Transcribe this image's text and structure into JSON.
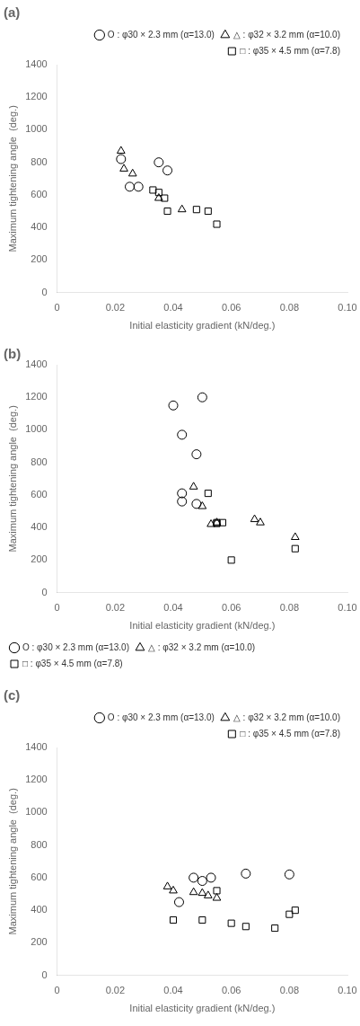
{
  "chart_data": [
    {
      "type": "scatter",
      "title": "(a)",
      "x_label": "Initial elasticity gradient (kN/deg.)",
      "y_label": "Maximum tightening angle  (deg.)",
      "xlim": [
        0,
        0.1
      ],
      "ylim": [
        0,
        1400
      ],
      "xticks": [
        0,
        0.02,
        0.04,
        0.06,
        0.08,
        {
          "value": 0.1,
          "label": "0.10"
        }
      ],
      "yticks": [
        0,
        200,
        400,
        600,
        800,
        1000,
        1200,
        1400
      ],
      "grid": false,
      "legend": "upper right",
      "series": [
        {
          "name": "O : φ30 × 2.3 mm (α=13.0)",
          "marker": "circle",
          "color": "black",
          "x": [
            0.022,
            0.025,
            0.028,
            0.035,
            0.038
          ],
          "values": [
            820,
            650,
            650,
            800,
            750
          ]
        },
        {
          "name": "△ : φ32 × 3.2 mm (α=10.0)",
          "marker": "triangle",
          "color": "black",
          "x": [
            0.022,
            0.023,
            0.026,
            0.035,
            0.043
          ],
          "values": [
            870,
            760,
            730,
            580,
            510
          ]
        },
        {
          "name": "□ : φ35 × 4.5 mm (α=7.8)",
          "marker": "square",
          "color": "black",
          "x": [
            0.033,
            0.035,
            0.037,
            0.038,
            0.048,
            0.052,
            0.055
          ],
          "values": [
            630,
            615,
            580,
            500,
            510,
            500,
            420
          ]
        }
      ]
    },
    {
      "type": "scatter",
      "title": "(b)",
      "x_label": "Initial elasticity gradient (kN/deg.)",
      "y_label": "Maximum tightening angle  (deg.)",
      "xlim": [
        0,
        0.1
      ],
      "ylim": [
        0,
        1400
      ],
      "xticks": [
        0,
        0.02,
        0.04,
        0.06,
        0.08,
        {
          "value": 0.1,
          "label": "0.10"
        }
      ],
      "yticks": [
        0,
        200,
        400,
        600,
        800,
        1000,
        1200,
        1400
      ],
      "grid": false,
      "legend": "lower left",
      "series": [
        {
          "name": "O : φ30 × 2.3 mm (α=13.0)",
          "marker": "circle",
          "color": "black",
          "x": [
            0.04,
            0.05,
            0.043,
            0.048,
            0.043,
            0.043,
            0.048
          ],
          "values": [
            1150,
            1200,
            970,
            850,
            610,
            560,
            545
          ]
        },
        {
          "name": "△ : φ32 × 3.2 mm (α=10.0)",
          "marker": "triangle",
          "color": "black",
          "x": [
            0.047,
            0.05,
            0.053,
            0.055,
            0.068,
            0.07,
            0.082
          ],
          "values": [
            650,
            530,
            420,
            430,
            450,
            430,
            340
          ]
        },
        {
          "name": "□ : φ35 × 4.5 mm (α=7.8)",
          "marker": "square",
          "color": "black",
          "x": [
            0.052,
            0.055,
            0.055,
            0.057,
            0.06,
            0.082
          ],
          "values": [
            610,
            425,
            430,
            430,
            200,
            270
          ]
        }
      ]
    },
    {
      "type": "scatter",
      "title": "(c)",
      "x_label": "Initial elasticity gradient (kN/deg.)",
      "y_label": "Maximum tightening angle  (deg.)",
      "xlim": [
        0,
        0.1
      ],
      "ylim": [
        0,
        1400
      ],
      "xticks": [
        0,
        0.02,
        0.04,
        0.06,
        0.08,
        {
          "value": 0.1,
          "label": "0.10"
        }
      ],
      "yticks": [
        0,
        200,
        400,
        600,
        800,
        1000,
        1200,
        1400
      ],
      "grid": false,
      "legend": "upper right",
      "series": [
        {
          "name": "O : φ30 × 2.3 mm (α=13.0)",
          "marker": "circle",
          "color": "black",
          "x": [
            0.042,
            0.047,
            0.05,
            0.053,
            0.065,
            0.08
          ],
          "values": [
            450,
            600,
            580,
            600,
            625,
            620
          ]
        },
        {
          "name": "△ : φ32 × 3.2 mm (α=10.0)",
          "marker": "triangle",
          "color": "black",
          "x": [
            0.038,
            0.04,
            0.047,
            0.05,
            0.052,
            0.055
          ],
          "values": [
            545,
            520,
            510,
            505,
            490,
            475
          ]
        },
        {
          "name": "□ : φ35 × 4.5 mm (α=7.8)",
          "marker": "square",
          "color": "black",
          "x": [
            0.04,
            0.05,
            0.055,
            0.06,
            0.065,
            0.075,
            0.08,
            0.082
          ],
          "values": [
            340,
            340,
            520,
            320,
            300,
            290,
            375,
            400
          ]
        }
      ]
    }
  ]
}
